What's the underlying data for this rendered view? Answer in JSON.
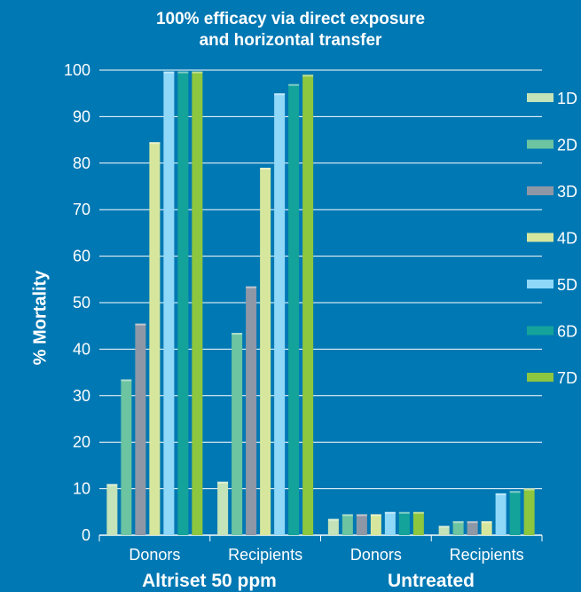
{
  "chart_data": {
    "type": "bar",
    "title_lines": [
      "100% efficacy via direct exposure",
      "and horizontal transfer"
    ],
    "ylabel": "% Mortality",
    "ylim": [
      0,
      100
    ],
    "yticks": [
      0,
      10,
      20,
      30,
      40,
      50,
      60,
      70,
      80,
      90,
      100
    ],
    "grid": true,
    "legend_position": "right",
    "categories": [
      "Donors",
      "Recipients",
      "Donors",
      "Recipients"
    ],
    "groups": [
      {
        "label": "Altriset 50 ppm",
        "categories": [
          "Donors",
          "Recipients"
        ]
      },
      {
        "label": "Untreated",
        "categories": [
          "Donors",
          "Recipients"
        ]
      }
    ],
    "series": [
      {
        "name": "1D",
        "color": "#c4e3b9",
        "values": [
          11,
          11.5,
          3.5,
          2
        ]
      },
      {
        "name": "2D",
        "color": "#6cc4a1",
        "values": [
          33.5,
          43.5,
          4.5,
          3
        ]
      },
      {
        "name": "3D",
        "color": "#8e97a6",
        "values": [
          45.5,
          53.5,
          4.5,
          3
        ]
      },
      {
        "name": "4D",
        "color": "#d6e79d",
        "values": [
          84.5,
          79,
          4.5,
          3
        ]
      },
      {
        "name": "5D",
        "color": "#8fd8f8",
        "values": [
          99.7,
          95,
          5,
          9
        ]
      },
      {
        "name": "6D",
        "color": "#14a39a",
        "values": [
          99.7,
          97,
          5,
          9.5
        ]
      },
      {
        "name": "7D",
        "color": "#8dc63f",
        "values": [
          99.7,
          99,
          5,
          10
        ]
      }
    ]
  }
}
